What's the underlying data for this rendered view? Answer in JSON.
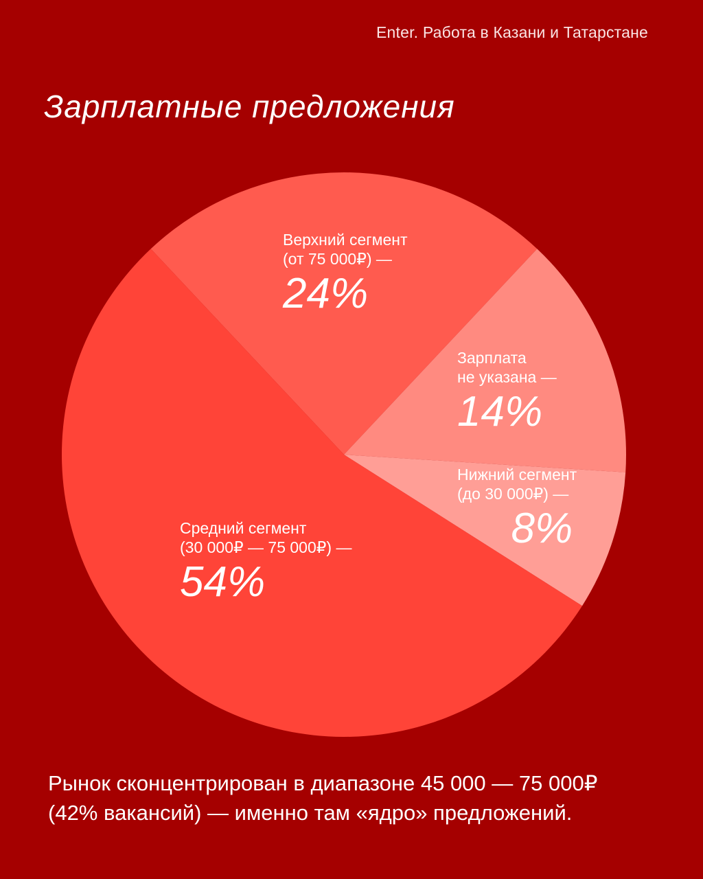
{
  "header": {
    "source": "Enter. Работа в Казани и Татарстане",
    "title": "Зарплатные предложения"
  },
  "chart_data": {
    "type": "pie",
    "title": "Зарплатные предложения",
    "slices": [
      {
        "id": "upper",
        "label_line1": "Верхний сегмент",
        "label_line2": "(от 75 000₽) —",
        "value": 24,
        "display": "24%",
        "color": "#FF5B4F"
      },
      {
        "id": "none",
        "label_line1": "Зарплата",
        "label_line2": "не указана —",
        "value": 14,
        "display": "14%",
        "color": "#FF8A80"
      },
      {
        "id": "lower",
        "label_line1": "Нижний сегмент",
        "label_line2": "(до 30 000₽) —",
        "value": 8,
        "display": "8%",
        "color": "#FF9E96"
      },
      {
        "id": "mid",
        "label_line1": "Средний сегмент",
        "label_line2": "(30 000₽ — 75 000₽) —",
        "value": 54,
        "display": "54%",
        "color": "#FF4438"
      }
    ]
  },
  "footer": {
    "line1": "Рынок сконцентрирован в диапазоне 45 000 — 75 000₽",
    "line2": "(42% вакансий) — именно там «ядро» предложений."
  },
  "colors": {
    "background": "#A50000",
    "text": "#FFFFFF"
  }
}
